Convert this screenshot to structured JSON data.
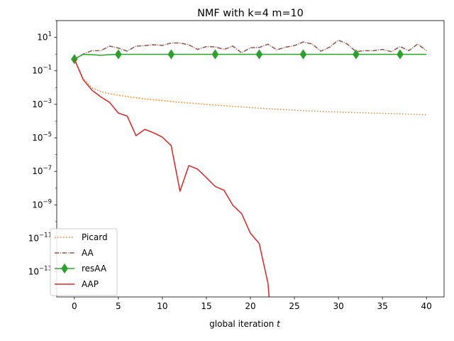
{
  "chart_data": {
    "type": "line",
    "title": "NMF with k=4 m=10",
    "xlabel": "global iteration t",
    "xlabel_parts": {
      "text": "global iteration ",
      "var": "t"
    },
    "ylabel": "",
    "y_scale": "log",
    "xlim": [
      -2,
      42
    ],
    "ylim_log10": [
      -14.5,
      2.0
    ],
    "x_ticks": [
      0,
      5,
      10,
      15,
      20,
      25,
      30,
      35,
      40
    ],
    "y_ticks": [
      {
        "base": "10",
        "exp": "1",
        "value": 10
      },
      {
        "base": "10",
        "exp": "−1",
        "value": 0.1
      },
      {
        "base": "10",
        "exp": "−3",
        "value": 0.001
      },
      {
        "base": "10",
        "exp": "−5",
        "value": 1e-05
      },
      {
        "base": "10",
        "exp": "−7",
        "value": 1e-07
      },
      {
        "base": "10",
        "exp": "−9",
        "value": 1e-09
      },
      {
        "base": "10",
        "exp": "−11",
        "value": 1e-11
      },
      {
        "base": "10",
        "exp": "−13",
        "value": 1e-13
      }
    ],
    "legend_position": "lower-left",
    "grid": false,
    "series": [
      {
        "name": "Picard",
        "color": "#ff7f0e",
        "style": "dotted",
        "marker": "none",
        "x": [
          0,
          1,
          2,
          3,
          4,
          5,
          6,
          7,
          8,
          9,
          10,
          11,
          12,
          13,
          14,
          15,
          16,
          17,
          18,
          19,
          20,
          21,
          22,
          23,
          24,
          25,
          26,
          27,
          28,
          29,
          30,
          31,
          32,
          33,
          34,
          35,
          36,
          37,
          38,
          39,
          40
        ],
        "y": [
          0.5,
          0.035,
          0.0095,
          0.0059,
          0.0043,
          0.0035,
          0.0029,
          0.0025,
          0.0021,
          0.0019,
          0.0017,
          0.0015,
          0.0013,
          0.0012,
          0.0011,
          0.00098,
          0.0009,
          0.00083,
          0.00076,
          0.0007,
          0.00064,
          0.00059,
          0.00055,
          0.00051,
          0.00048,
          0.00045,
          0.00042,
          0.0004,
          0.00038,
          0.00036,
          0.00035,
          0.00033,
          0.00032,
          0.00031,
          0.0003,
          0.00029,
          0.00028,
          0.00027,
          0.00026,
          0.00025,
          0.00024
        ]
      },
      {
        "name": "AA",
        "color": "#8c564b",
        "style": "dashdot",
        "marker": "none",
        "x": [
          0,
          1,
          2,
          3,
          4,
          5,
          6,
          7,
          8,
          9,
          10,
          11,
          12,
          13,
          14,
          15,
          16,
          17,
          18,
          19,
          20,
          21,
          22,
          23,
          24,
          25,
          26,
          27,
          28,
          29,
          30,
          31,
          32,
          33,
          34,
          35,
          36,
          37,
          38,
          39,
          40
        ],
        "y": [
          0.5,
          1.0,
          1.6,
          1.6,
          3.0,
          2.3,
          1.5,
          3.0,
          3.2,
          3.6,
          3.3,
          4.6,
          4.6,
          3.6,
          1.9,
          2.8,
          2.7,
          1.9,
          3.0,
          1.2,
          2.4,
          2.5,
          3.9,
          1.8,
          2.6,
          3.2,
          5.3,
          4.0,
          1.5,
          2.6,
          6.8,
          4.0,
          1.4,
          1.6,
          1.6,
          1.9,
          1.4,
          2.8,
          1.6,
          4.0,
          1.6
        ]
      },
      {
        "name": "resAA",
        "color": "#2ca02c",
        "style": "solid",
        "marker": "thin_diamond",
        "marker_x": [
          0,
          5,
          11,
          16,
          21,
          26,
          32,
          37
        ],
        "x": [
          0,
          1,
          2,
          3,
          4,
          5,
          6,
          7,
          8,
          9,
          10,
          11,
          12,
          13,
          14,
          15,
          16,
          17,
          18,
          19,
          20,
          21,
          22,
          23,
          24,
          25,
          26,
          27,
          28,
          29,
          30,
          31,
          32,
          33,
          34,
          35,
          36,
          37,
          38,
          39,
          40
        ],
        "y": [
          0.5,
          0.97,
          0.93,
          0.85,
          0.93,
          0.97,
          0.97,
          0.97,
          0.97,
          0.97,
          0.97,
          0.97,
          0.97,
          0.97,
          0.97,
          0.97,
          0.97,
          0.97,
          0.97,
          0.97,
          0.97,
          0.97,
          0.97,
          0.97,
          0.97,
          0.97,
          0.97,
          0.97,
          0.97,
          0.97,
          0.97,
          0.97,
          0.97,
          0.97,
          0.97,
          0.97,
          0.97,
          0.97,
          0.97,
          0.97,
          0.97
        ]
      },
      {
        "name": "AAP",
        "color": "#d62728",
        "style": "solid",
        "marker": "none",
        "x": [
          0,
          1,
          2,
          3,
          4,
          5,
          6,
          7,
          8,
          9,
          10,
          11,
          12,
          13,
          14,
          15,
          16,
          17,
          18,
          19,
          20,
          21,
          22,
          22.2
        ],
        "y": [
          0.5,
          0.03,
          0.007,
          0.0028,
          0.0013,
          0.0003,
          0.0002,
          1.35e-05,
          3.2e-05,
          2e-05,
          1.1e-05,
          3.4e-06,
          6.5e-09,
          2.2e-07,
          1.35e-07,
          4.2e-08,
          1.25e-08,
          7.4e-09,
          9.5e-10,
          3e-10,
          2e-11,
          4.9e-12,
          2e-14,
          1e-15
        ]
      }
    ]
  }
}
